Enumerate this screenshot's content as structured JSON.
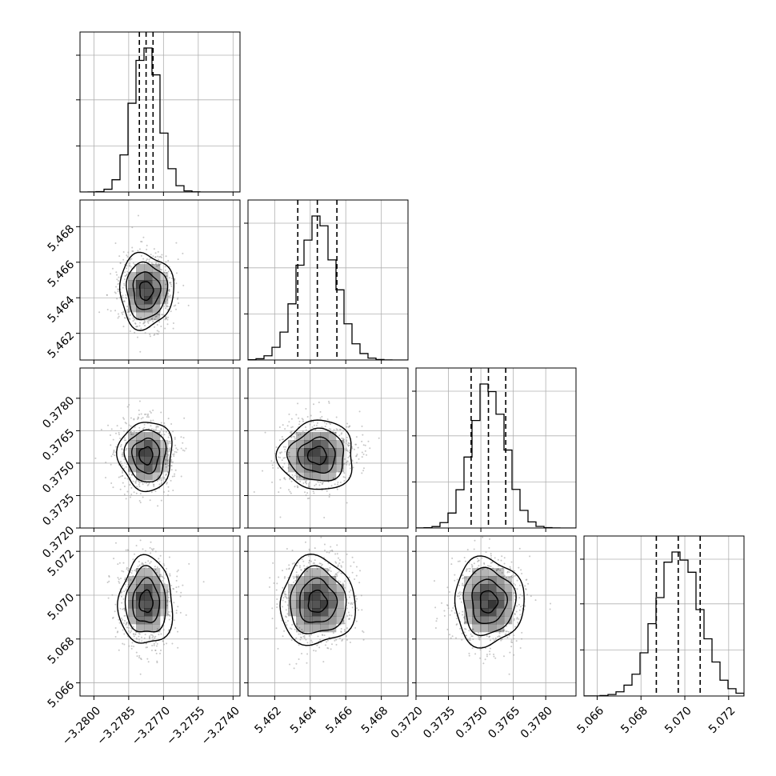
{
  "chart_data": {
    "type": "corner",
    "parameters": [
      {
        "range": [
          -3.2806,
          -3.2737
        ],
        "ticks": [
          "−3.2800",
          "−3.2785",
          "−3.2770",
          "−3.2755",
          "−3.2740"
        ],
        "tick_values": [
          -3.28,
          -3.2785,
          -3.277,
          -3.2755,
          -3.274
        ],
        "quantiles": [
          -3.27804,
          -3.27775,
          -3.27745
        ],
        "mean": -3.27775,
        "sd": 0.00058
      },
      {
        "range": [
          5.4605,
          5.4695
        ],
        "ticks": [
          "5.462",
          "5.464",
          "5.466",
          "5.468"
        ],
        "tick_values": [
          5.462,
          5.464,
          5.466,
          5.468
        ],
        "quantiles": [
          5.4633,
          5.4644,
          5.4655
        ],
        "mean": 5.4644,
        "sd": 0.00105
      },
      {
        "range": [
          0.372,
          0.3794
        ],
        "ticks": [
          "0.3720",
          "0.3735",
          "0.3750",
          "0.3765",
          "0.3780"
        ],
        "tick_values": [
          0.372,
          0.3735,
          0.375,
          0.3765,
          0.378
        ],
        "quantiles": [
          0.37455,
          0.37535,
          0.37615
        ],
        "mean": 0.37535,
        "sd": 0.0008
      },
      {
        "range": [
          5.0654,
          5.0727
        ],
        "ticks": [
          "5.066",
          "5.068",
          "5.070",
          "5.072"
        ],
        "tick_values": [
          5.066,
          5.068,
          5.07,
          5.072
        ],
        "quantiles": [
          5.0687,
          5.0697,
          5.0707
        ],
        "mean": 5.0697,
        "sd": 0.001
      }
    ],
    "histogram_bins": 20,
    "density_levels": 4,
    "grid": true,
    "colors": {
      "hist": "#000000",
      "contour": "#000000",
      "points": "#9a9a9a",
      "grid": "#b0b0b0",
      "density": "#000000"
    }
  }
}
